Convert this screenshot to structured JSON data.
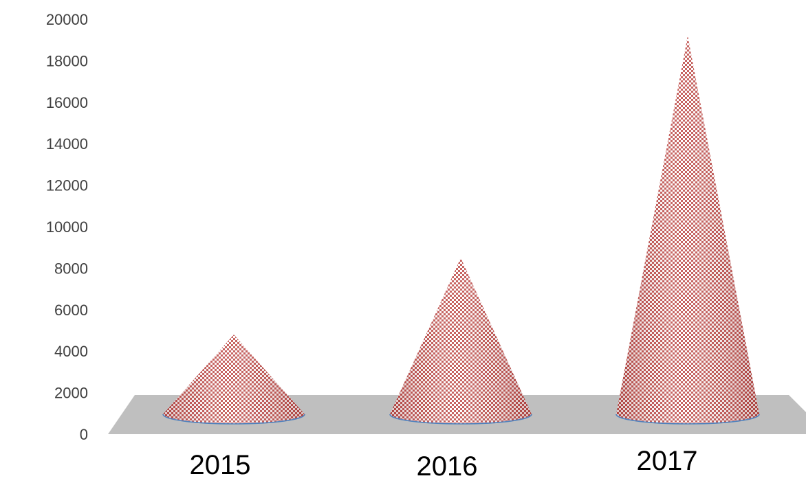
{
  "chart_data": {
    "type": "bar",
    "bar_shape": "cone",
    "categories": [
      "2015",
      "2016",
      "2017"
    ],
    "values": [
      4800,
      8500,
      19200
    ],
    "ylim": [
      0,
      20000
    ],
    "y_ticks": [
      "0",
      "2000",
      "4000",
      "6000",
      "8000",
      "10000",
      "12000",
      "14000",
      "16000",
      "18000",
      "20000"
    ],
    "grid": false,
    "legend": "none",
    "colors": {
      "cone_primary": "#c0504d",
      "cone_secondary": "#ffffff",
      "cone_base_outline": "#4f81bd",
      "floor": "#bfbfbf",
      "y_tick_text": "#404040",
      "x_tick_text": "#000000"
    }
  }
}
